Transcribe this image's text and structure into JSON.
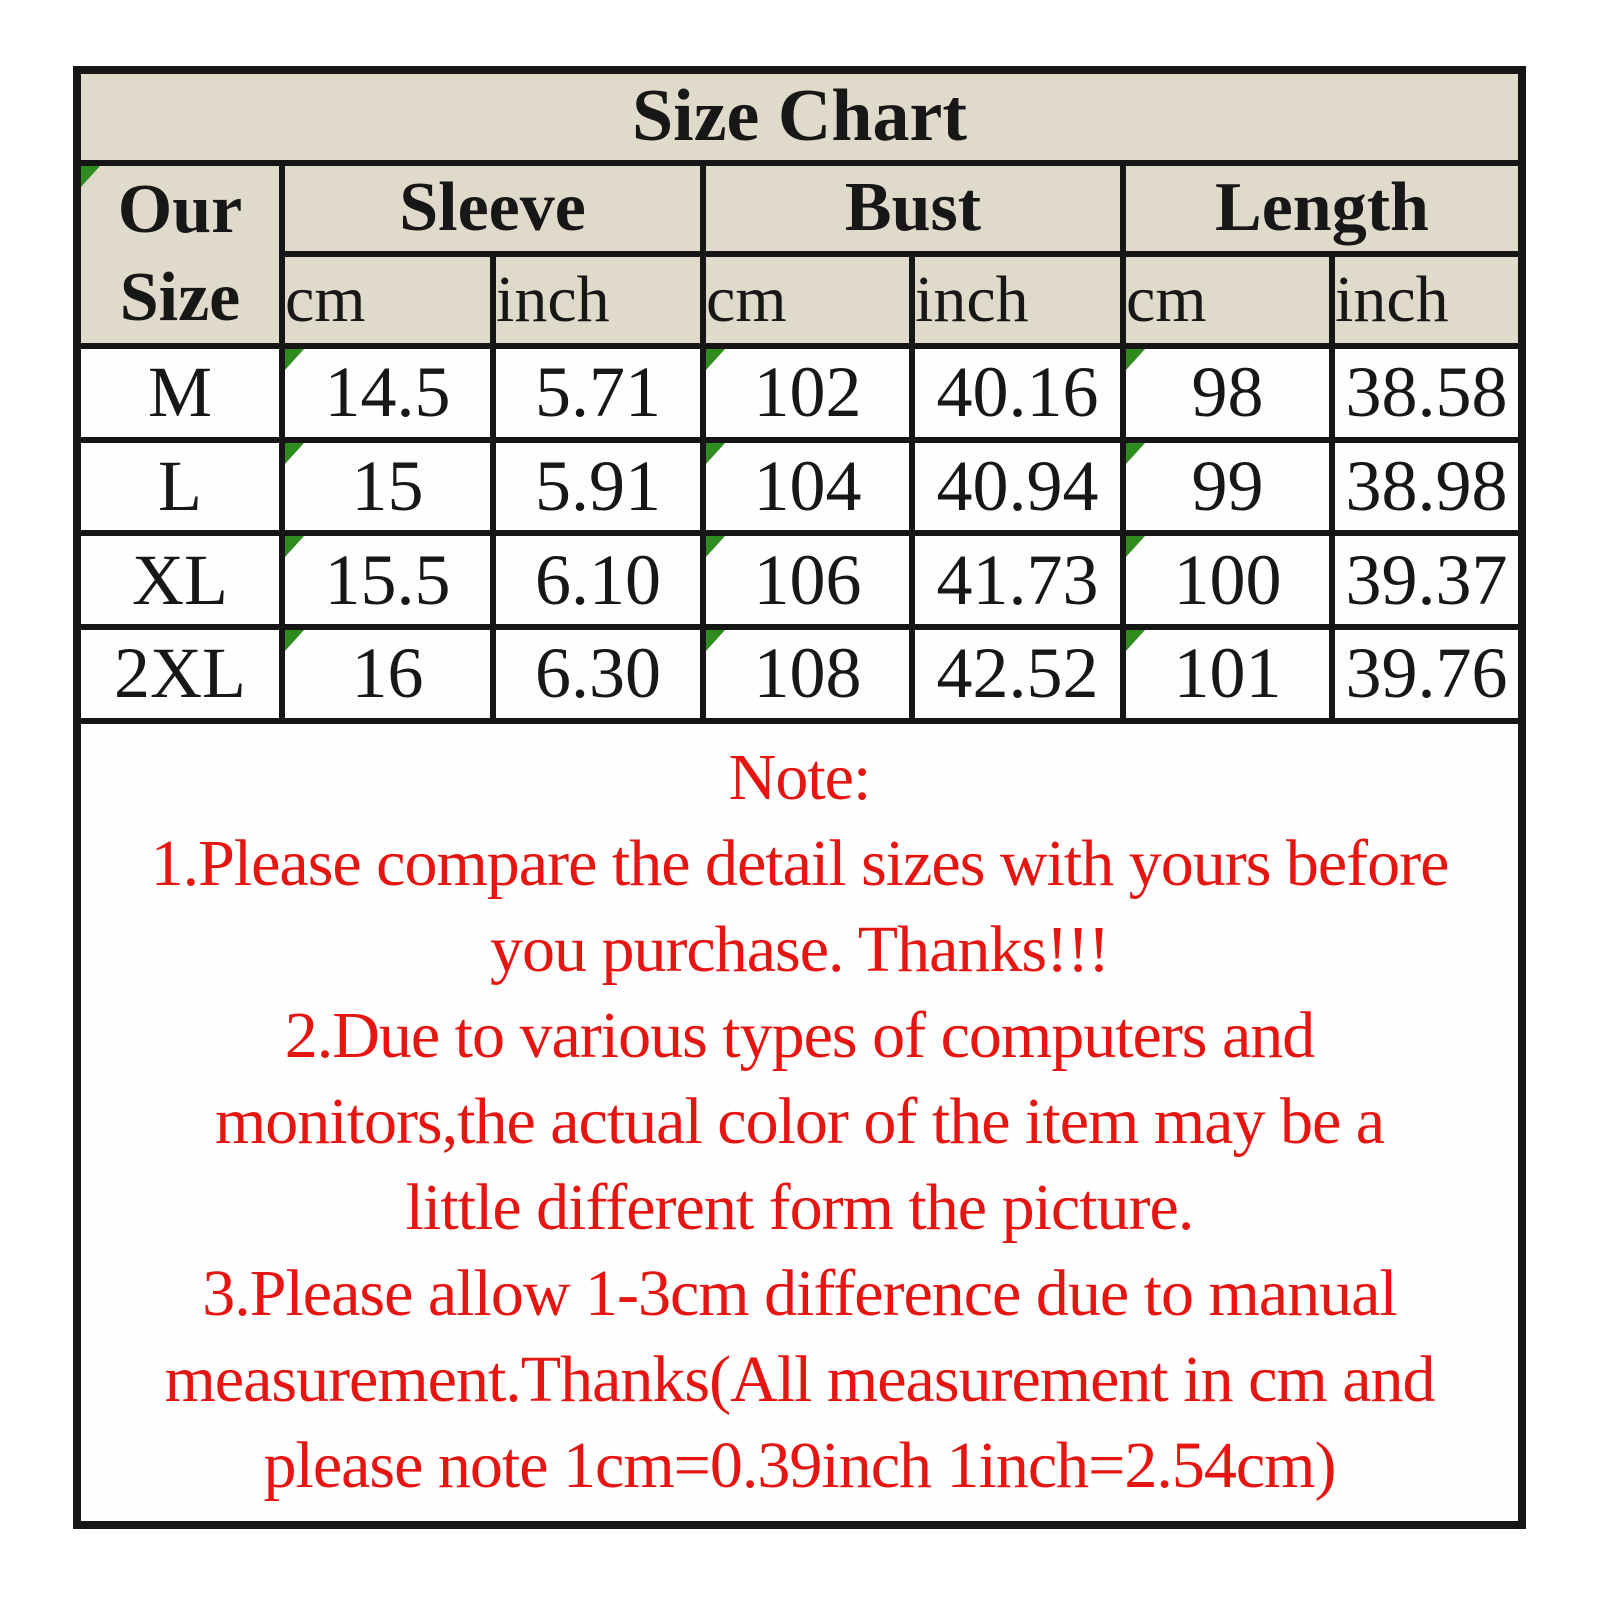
{
  "title": "Size Chart",
  "table": {
    "corner_header": "Our Size",
    "column_groups": [
      {
        "label": "Sleeve"
      },
      {
        "label": "Bust"
      },
      {
        "label": "Length"
      }
    ],
    "unit_headers": [
      "cm",
      "inch",
      "cm",
      "inch",
      "cm",
      "inch"
    ],
    "rows": [
      {
        "size": "M",
        "values": [
          "14.5",
          "5.71",
          "102",
          "40.16",
          "98",
          "38.58"
        ]
      },
      {
        "size": "L",
        "values": [
          "15",
          "5.91",
          "104",
          "40.94",
          "99",
          "38.98"
        ]
      },
      {
        "size": "XL",
        "values": [
          "15.5",
          "6.10",
          "106",
          "41.73",
          "100",
          "39.37"
        ]
      },
      {
        "size": "2XL",
        "values": [
          "16",
          "6.30",
          "108",
          "42.52",
          "101",
          "39.76"
        ]
      }
    ],
    "flag_columns": [
      0,
      2,
      4
    ],
    "corner_flag": true
  },
  "note": {
    "heading": "Note:",
    "lines": [
      "1.Please compare the detail sizes with yours before",
      "you purchase. Thanks!!!",
      "2.Due to various types of computers and",
      "monitors,the actual color of the item may be a",
      "little different form the picture.",
      "3.Please allow 1-3cm difference due to manual",
      "measurement.Thanks(All measurement in cm and",
      "please note 1cm=0.39inch 1inch=2.54cm)"
    ]
  },
  "colors": {
    "header_background": "#dfdac9",
    "body_background": "#fefefe",
    "border": "#161616",
    "text": "#171717",
    "note_text": "#e51512",
    "flag_green": "#2e8b1e"
  }
}
